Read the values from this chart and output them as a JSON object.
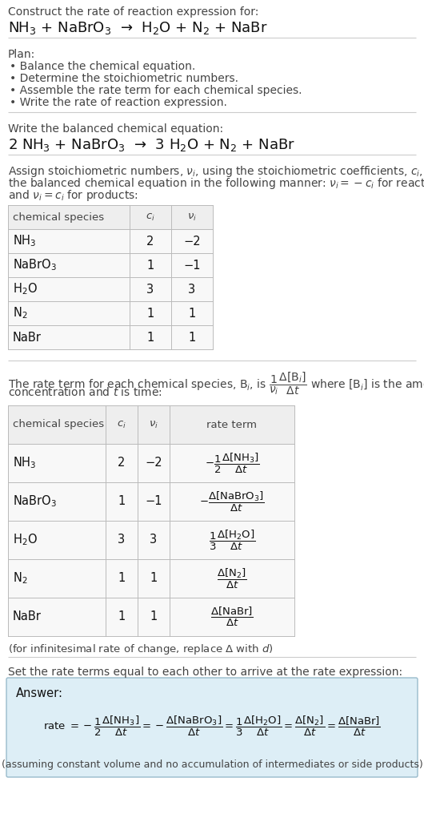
{
  "bg_color": "#ffffff",
  "text_color": "#222222",
  "header_text": "Construct the rate of reaction expression for:",
  "reaction_unbalanced": "NH$_3$ + NaBrO$_3$  →  H$_2$O + N$_2$ + NaBr",
  "plan_header": "Plan:",
  "plan_items": [
    "• Balance the chemical equation.",
    "• Determine the stoichiometric numbers.",
    "• Assemble the rate term for each chemical species.",
    "• Write the rate of reaction expression."
  ],
  "balanced_header": "Write the balanced chemical equation:",
  "reaction_balanced": "2 NH$_3$ + NaBrO$_3$  →  3 H$_2$O + N$_2$ + NaBr",
  "stoich_lines": [
    "Assign stoichiometric numbers, $\\nu_i$, using the stoichiometric coefficients, $c_i$, from",
    "the balanced chemical equation in the following manner: $\\nu_i = -c_i$ for reactants",
    "and $\\nu_i = c_i$ for products:"
  ],
  "table1_headers": [
    "chemical species",
    "$c_i$",
    "$\\nu_i$"
  ],
  "table1_rows": [
    [
      "NH$_3$",
      "2",
      "−2"
    ],
    [
      "NaBrO$_3$",
      "1",
      "−1"
    ],
    [
      "H$_2$O",
      "3",
      "3"
    ],
    [
      "N$_2$",
      "1",
      "1"
    ],
    [
      "NaBr",
      "1",
      "1"
    ]
  ],
  "rate_term_lines": [
    "The rate term for each chemical species, B$_i$, is $\\dfrac{1}{\\nu_i}\\dfrac{\\Delta[\\mathrm{B}_i]}{\\Delta t}$ where [B$_i$] is the amount",
    "concentration and $t$ is time:"
  ],
  "table2_headers": [
    "chemical species",
    "$c_i$",
    "$\\nu_i$",
    "rate term"
  ],
  "table2_rows": [
    [
      "NH$_3$",
      "2",
      "−2",
      "$-\\dfrac{1}{2}\\dfrac{\\Delta[\\mathrm{NH_3}]}{\\Delta t}$"
    ],
    [
      "NaBrO$_3$",
      "1",
      "−1",
      "$-\\dfrac{\\Delta[\\mathrm{NaBrO_3}]}{\\Delta t}$"
    ],
    [
      "H$_2$O",
      "3",
      "3",
      "$\\dfrac{1}{3}\\dfrac{\\Delta[\\mathrm{H_2O}]}{\\Delta t}$"
    ],
    [
      "N$_2$",
      "1",
      "1",
      "$\\dfrac{\\Delta[\\mathrm{N_2}]}{\\Delta t}$"
    ],
    [
      "NaBr",
      "1",
      "1",
      "$\\dfrac{\\Delta[\\mathrm{NaBr}]}{\\Delta t}$"
    ]
  ],
  "infinitesimal_note": "(for infinitesimal rate of change, replace Δ with $d$)",
  "set_rate_header": "Set the rate terms equal to each other to arrive at the rate expression:",
  "answer_box_bg": "#ddeef6",
  "answer_label": "Answer:",
  "rate_expression": "rate $= -\\dfrac{1}{2}\\dfrac{\\Delta[\\mathrm{NH_3}]}{\\Delta t} = -\\dfrac{\\Delta[\\mathrm{NaBrO_3}]}{\\Delta t} = \\dfrac{1}{3}\\dfrac{\\Delta[\\mathrm{H_2O}]}{\\Delta t} = \\dfrac{\\Delta[\\mathrm{N_2}]}{\\Delta t} = \\dfrac{\\Delta[\\mathrm{NaBr}]}{\\Delta t}$",
  "assuming_note": "(assuming constant volume and no accumulation of intermediates or side products)"
}
